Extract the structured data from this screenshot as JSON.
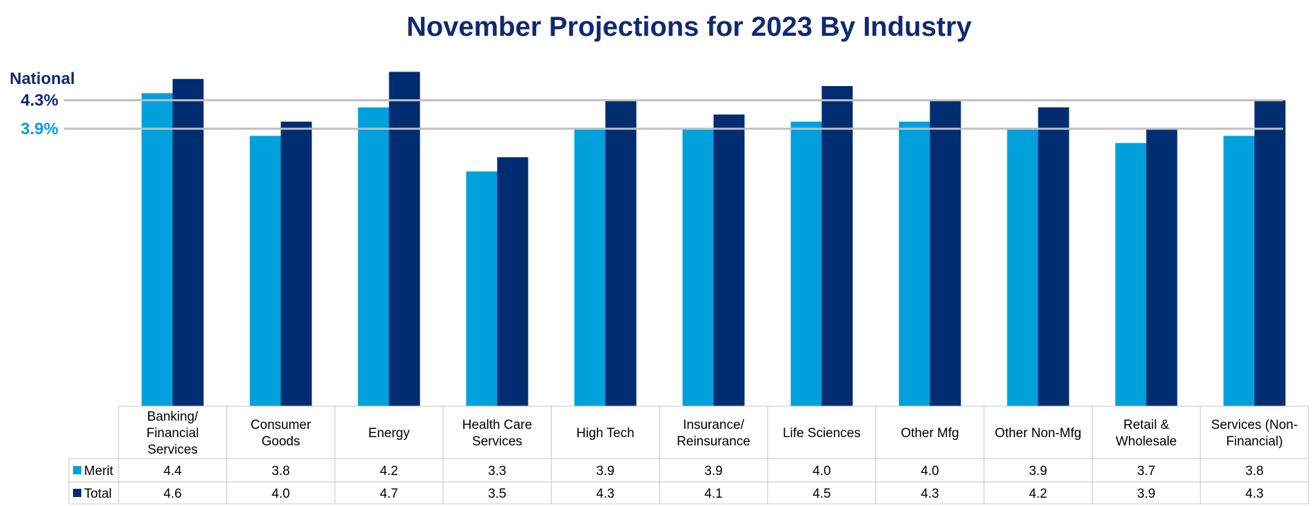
{
  "chart_data": {
    "type": "bar",
    "title": "November Projections for 2023 By Industry",
    "categories": [
      "Banking/ Financial Services",
      "Consumer Goods",
      "Energy",
      "Health Care Services",
      "High Tech",
      "Insurance/ Reinsurance",
      "Life Sciences",
      "Other Mfg",
      "Other Non-Mfg",
      "Retail & Wholesale",
      "Services (Non-Financial)"
    ],
    "category_lines": [
      [
        "Banking/",
        "Financial",
        "Services"
      ],
      [
        "Consumer",
        "Goods"
      ],
      [
        "Energy"
      ],
      [
        "Health Care",
        "Services"
      ],
      [
        "High Tech"
      ],
      [
        "Insurance/",
        "Reinsurance"
      ],
      [
        "Life Sciences"
      ],
      [
        "Other Mfg"
      ],
      [
        "Other Non-Mfg"
      ],
      [
        "Retail &",
        "Wholesale"
      ],
      [
        "Services (Non-",
        "Financial)"
      ]
    ],
    "series": [
      {
        "name": "Merit",
        "color": "#00a0dc",
        "values": [
          4.4,
          3.8,
          4.2,
          3.3,
          3.9,
          3.9,
          4.0,
          4.0,
          3.9,
          3.7,
          3.8
        ]
      },
      {
        "name": "Total",
        "color": "#002d72",
        "values": [
          4.6,
          4.0,
          4.7,
          3.5,
          4.3,
          4.1,
          4.5,
          4.3,
          4.2,
          3.9,
          4.3
        ]
      }
    ],
    "value_labels": {
      "Merit": [
        "4.4",
        "3.8",
        "4.2",
        "3.3",
        "3.9",
        "3.9",
        "4.0",
        "4.0",
        "3.9",
        "3.7",
        "3.8"
      ],
      "Total": [
        "4.6",
        "4.0",
        "4.7",
        "3.5",
        "4.3",
        "4.1",
        "4.5",
        "4.3",
        "4.2",
        "3.9",
        "4.3"
      ]
    },
    "reference_lines": {
      "heading": "National",
      "lines": [
        {
          "series": "Total",
          "value": 4.3,
          "label": "4.3%",
          "color": "#0f2a72"
        },
        {
          "series": "Merit",
          "value": 3.9,
          "label": "3.9%",
          "color": "#00a0dc"
        }
      ]
    },
    "ylim": [
      0,
      4.8
    ],
    "y_axis_visible": false,
    "grid": false,
    "legend": "data-table-left"
  }
}
